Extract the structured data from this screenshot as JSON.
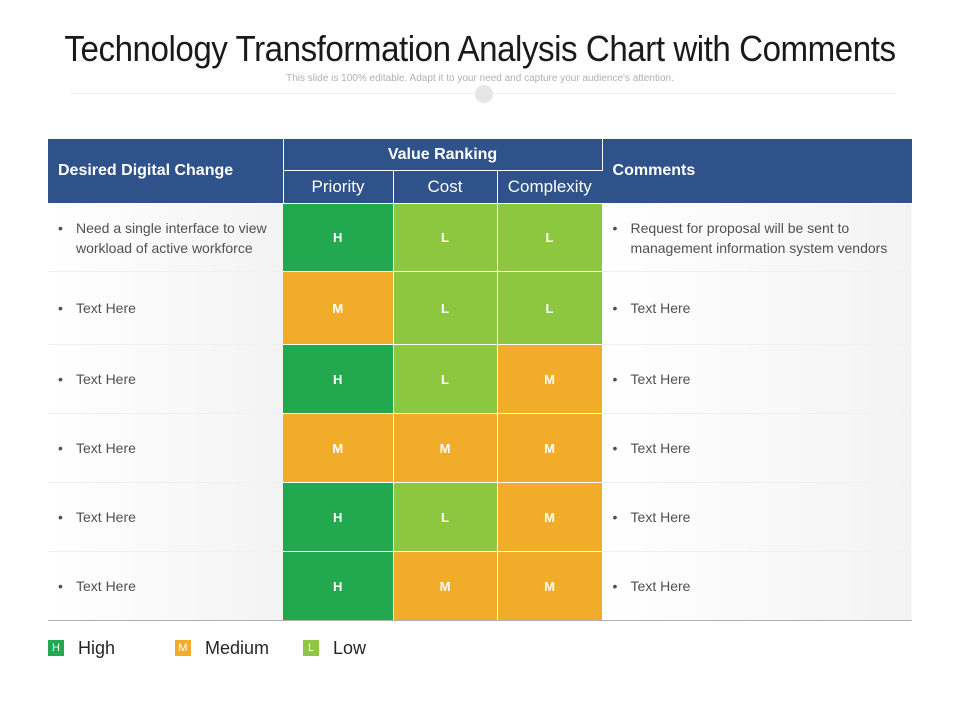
{
  "title": "Technology Transformation Analysis Chart with Comments",
  "subtitle": "This slide is 100% editable. Adapt it to your need and capture your audience's attention.",
  "colors": {
    "H": "#22a94f",
    "M": "#f1ad2a",
    "L": "#8dc63f",
    "header": "#2e5289"
  },
  "table": {
    "col_desired": "Desired Digital Change",
    "col_value": "Value Ranking",
    "col_comments": "Comments",
    "sub_priority": "Priority",
    "sub_cost": "Cost",
    "sub_complexity": "Complexity",
    "rows": [
      {
        "change": "Need a single interface to view workload of active workforce",
        "priority": "H",
        "cost": "L",
        "complexity": "L",
        "comment": "Request for proposal will be sent to management information system vendors"
      },
      {
        "change": "Text Here",
        "priority": "M",
        "cost": "L",
        "complexity": "L",
        "comment": "Text Here"
      },
      {
        "change": "Text Here",
        "priority": "H",
        "cost": "L",
        "complexity": "M",
        "comment": "Text Here"
      },
      {
        "change": "Text Here",
        "priority": "M",
        "cost": "M",
        "complexity": "M",
        "comment": "Text Here"
      },
      {
        "change": "Text Here",
        "priority": "H",
        "cost": "L",
        "complexity": "M",
        "comment": "Text Here"
      },
      {
        "change": "Text Here",
        "priority": "H",
        "cost": "M",
        "complexity": "M",
        "comment": "Text Here"
      }
    ]
  },
  "legend": [
    {
      "key": "H",
      "label": "High"
    },
    {
      "key": "M",
      "label": "Medium"
    },
    {
      "key": "L",
      "label": "Low"
    }
  ]
}
